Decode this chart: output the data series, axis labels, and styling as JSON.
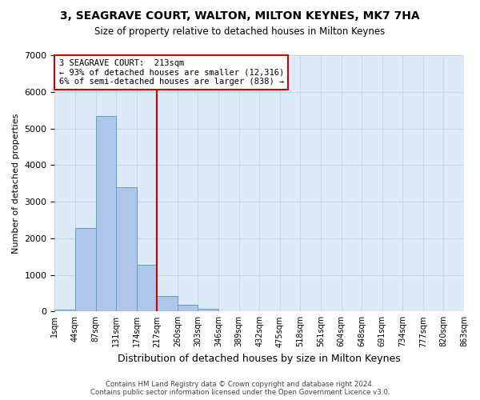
{
  "title": "3, SEAGRAVE COURT, WALTON, MILTON KEYNES, MK7 7HA",
  "subtitle": "Size of property relative to detached houses in Milton Keynes",
  "xlabel": "Distribution of detached houses by size in Milton Keynes",
  "ylabel": "Number of detached properties",
  "footer_line1": "Contains HM Land Registry data © Crown copyright and database right 2024.",
  "footer_line2": "Contains public sector information licensed under the Open Government Licence v3.0.",
  "bin_labels": [
    "1sqm",
    "44sqm",
    "87sqm",
    "131sqm",
    "174sqm",
    "217sqm",
    "260sqm",
    "303sqm",
    "346sqm",
    "389sqm",
    "432sqm",
    "475sqm",
    "518sqm",
    "561sqm",
    "604sqm",
    "648sqm",
    "691sqm",
    "734sqm",
    "777sqm",
    "820sqm",
    "863sqm"
  ],
  "bar_values": [
    50,
    2280,
    5350,
    3400,
    1280,
    430,
    185,
    75,
    10,
    0,
    0,
    0,
    0,
    0,
    0,
    0,
    0,
    0,
    0,
    0
  ],
  "bar_color": "#aec6e8",
  "bar_edge_color": "#5a9fd4",
  "annotation_title": "3 SEAGRAVE COURT:  213sqm",
  "annotation_line1": "← 93% of detached houses are smaller (12,316)",
  "annotation_line2": "6% of semi-detached houses are larger (838) →",
  "line_color": "#cc0000",
  "annotation_box_color": "#ffffff",
  "annotation_box_edge": "#cc0000",
  "ylim": [
    0,
    7000
  ],
  "yticks": [
    0,
    1000,
    2000,
    3000,
    4000,
    5000,
    6000,
    7000
  ],
  "grid_color": "#c8d8e8",
  "background_color": "#ddeaf7"
}
